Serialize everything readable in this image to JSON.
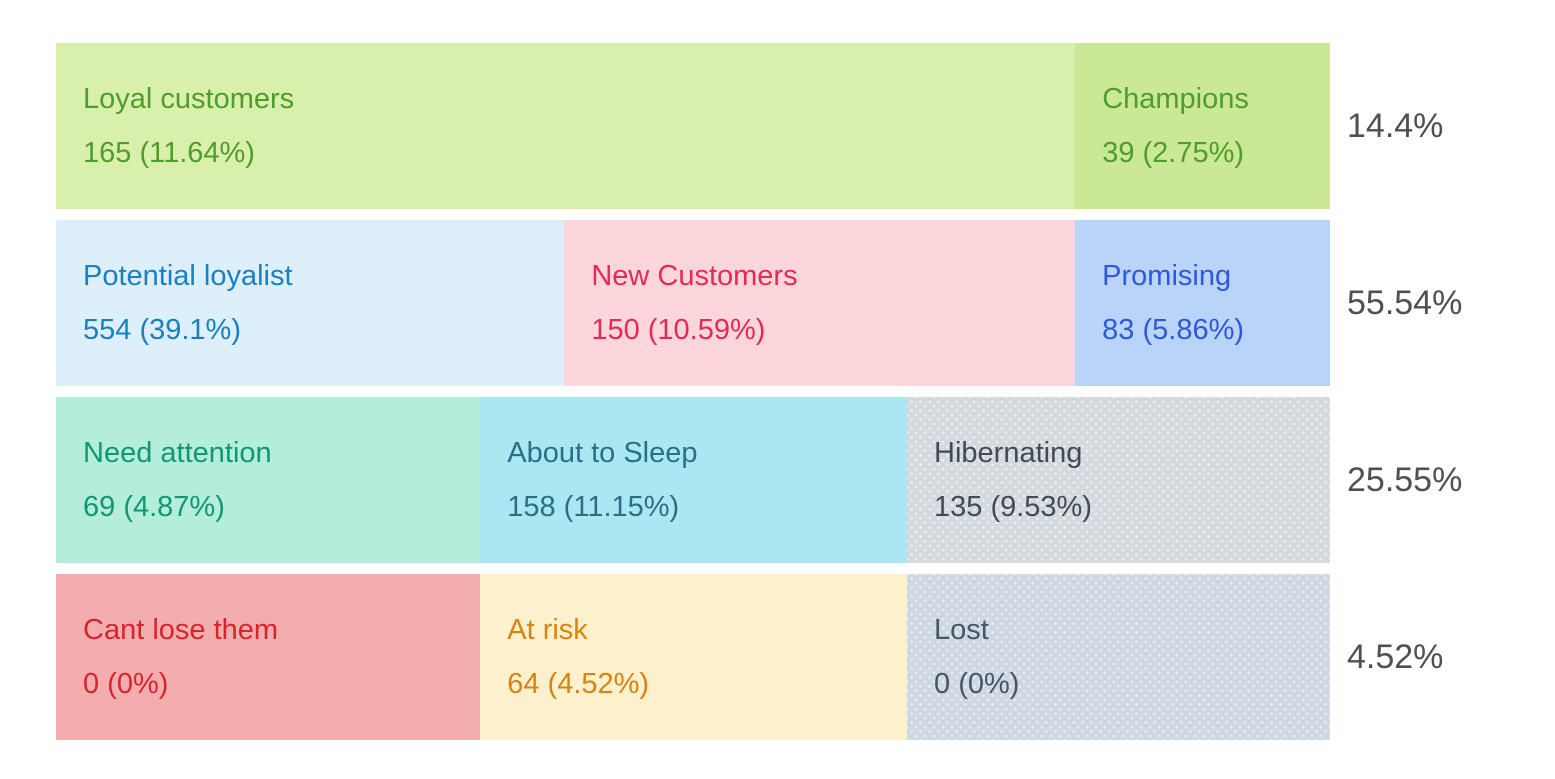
{
  "chart_data": {
    "type": "heatmap",
    "description": "RFM customer segmentation grid: colored segment tiles with customer counts and share percentages, row totals on the right",
    "legend_position": "right",
    "background_color": "#ffffff",
    "row_total_text_color": "#4f4f54",
    "rows": [
      {
        "total_percent": "14.4%",
        "segments": [
          {
            "name": "Loyal customers",
            "count": 165,
            "percent": 11.64,
            "value_label": "165 (11.64%)",
            "width_percent": 80.0,
            "bg_color": "#d9f0ad",
            "text_color": "#4f9d2a",
            "pattern": "solid"
          },
          {
            "name": "Champions",
            "count": 39,
            "percent": 2.75,
            "value_label": "39 (2.75%)",
            "width_percent": 20.0,
            "bg_color": "#cbe897",
            "text_color": "#4f9d2a",
            "pattern": "solid"
          }
        ]
      },
      {
        "total_percent": "55.54%",
        "segments": [
          {
            "name": "Potential loyalist",
            "count": 554,
            "percent": 39.1,
            "value_label": "554 (39.1%)",
            "width_percent": 39.9,
            "bg_color": "#ddeffa",
            "text_color": "#1981c2",
            "pattern": "solid"
          },
          {
            "name": "New Customers",
            "count": 150,
            "percent": 10.59,
            "value_label": "150 (10.59%)",
            "width_percent": 40.1,
            "bg_color": "#fcd6db",
            "text_color": "#e42a55",
            "pattern": "solid"
          },
          {
            "name": "Promising",
            "count": 83,
            "percent": 5.86,
            "value_label": "83 (5.86%)",
            "width_percent": 20.0,
            "bg_color": "#b9d3f9",
            "text_color": "#2e59da",
            "pattern": "solid"
          }
        ]
      },
      {
        "total_percent": "25.55%",
        "segments": [
          {
            "name": "Need attention",
            "count": 69,
            "percent": 4.87,
            "value_label": "69 (4.87%)",
            "width_percent": 33.3,
            "bg_color": "#b4edda",
            "text_color": "#119678",
            "pattern": "solid"
          },
          {
            "name": "About to Sleep",
            "count": 158,
            "percent": 11.15,
            "value_label": "158 (11.15%)",
            "width_percent": 33.5,
            "bg_color": "#a9e8f3",
            "text_color": "#2d6e87",
            "pattern": "solid"
          },
          {
            "name": "Hibernating",
            "count": 135,
            "percent": 9.53,
            "value_label": "135 (9.53%)",
            "width_percent": 33.2,
            "bg_color": "#d4d9dd",
            "text_color": "#404b55",
            "pattern": "dotted"
          }
        ]
      },
      {
        "total_percent": "4.52%",
        "segments": [
          {
            "name": "Cant lose them",
            "count": 0,
            "percent": 0,
            "value_label": "0 (0%)",
            "width_percent": 33.3,
            "bg_color": "#f3adaf",
            "text_color": "#d5262c",
            "pattern": "solid"
          },
          {
            "name": "At risk",
            "count": 64,
            "percent": 4.52,
            "value_label": "64 (4.52%)",
            "width_percent": 33.5,
            "bg_color": "#fcf1cc",
            "text_color": "#d98410",
            "pattern": "solid"
          },
          {
            "name": "Lost",
            "count": 0,
            "percent": 0,
            "value_label": "0 (0%)",
            "width_percent": 33.2,
            "bg_color": "#cfd7e1",
            "text_color": "#455669",
            "pattern": "dotted"
          }
        ]
      }
    ]
  }
}
